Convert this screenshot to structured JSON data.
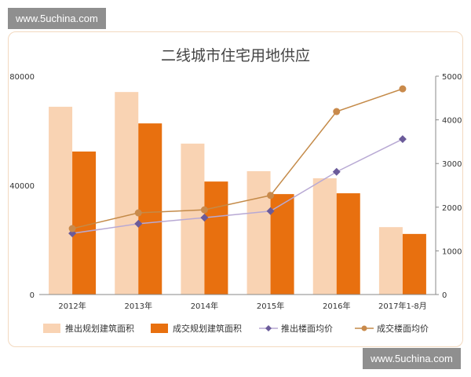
{
  "watermark_top": "www.5uchina.com",
  "watermark_bottom": "www.5uchina.com",
  "chart_data": {
    "type": "bar",
    "title": "二线城市住宅用地供应",
    "categories": [
      "2012年",
      "2013年",
      "2014年",
      "2015年",
      "2016年",
      "2017年1-8月"
    ],
    "y_left": {
      "range": [
        0,
        80000
      ],
      "ticks": [
        "0",
        "40000",
        "80000"
      ]
    },
    "y_right": {
      "range": [
        0,
        5000
      ],
      "ticks": [
        "0",
        "1000",
        "2000",
        "3000",
        "4000",
        "5000"
      ]
    },
    "series": [
      {
        "name": "推出规划建筑面积",
        "type": "bar",
        "axis": "left",
        "color": "#f9d3b3",
        "values": [
          68800,
          74200,
          55300,
          45200,
          42600,
          24700
        ]
      },
      {
        "name": "成交规划建筑面积",
        "type": "bar",
        "axis": "left",
        "color": "#e8700f",
        "values": [
          52400,
          62700,
          41400,
          36800,
          37100,
          22200
        ]
      },
      {
        "name": "推出楼面均价",
        "type": "line",
        "axis": "right",
        "color": "#b8a9d4",
        "marker": "diamond",
        "marker_color": "#6b5b9a",
        "values": [
          1400,
          1620,
          1760,
          1910,
          2810,
          3560
        ]
      },
      {
        "name": "成交楼面均价",
        "type": "line",
        "axis": "right",
        "color": "#c48a48",
        "marker": "circle",
        "marker_color": "#c98a4b",
        "values": [
          1510,
          1870,
          1940,
          2270,
          4190,
          4710
        ]
      }
    ],
    "grid": false,
    "legend": "bottom"
  }
}
